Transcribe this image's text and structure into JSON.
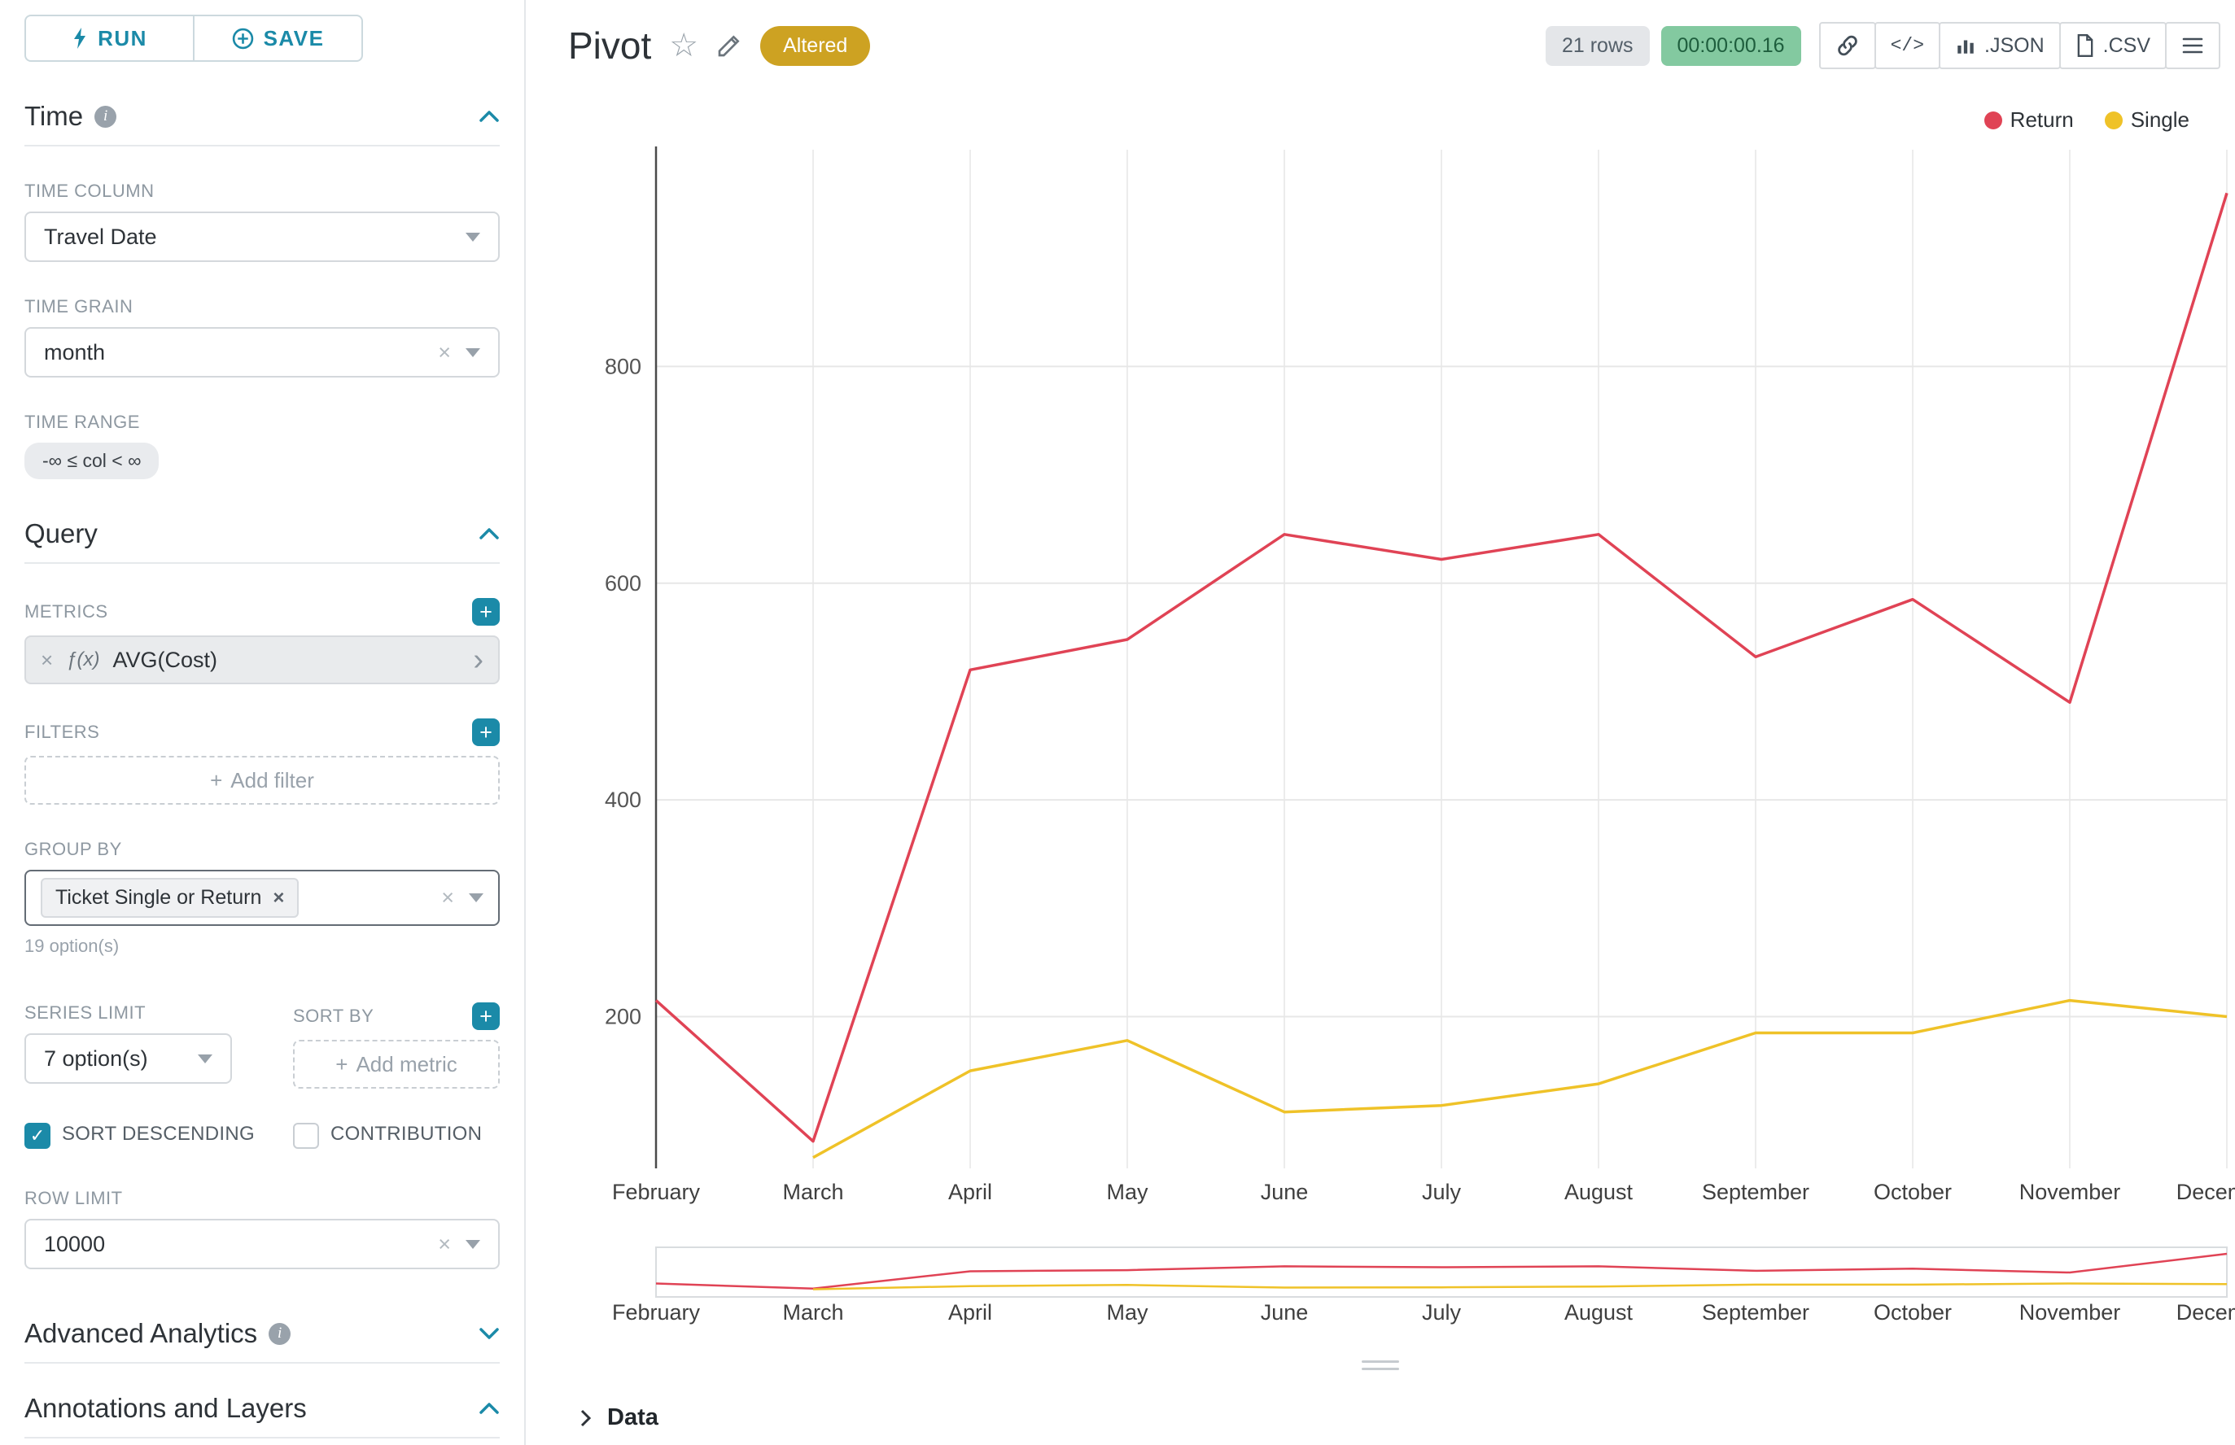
{
  "colors": {
    "accent": "#1b8aa8",
    "return_series": "#e04355",
    "single_series": "#efc228",
    "altered_badge_bg": "#cda222",
    "timer_badge_bg": "#83c9a0",
    "timer_badge_text": "#1e5e3d"
  },
  "icons": {
    "info": "i",
    "close": "×",
    "check": "✓",
    "plus": "+",
    "star": "☆",
    "code": "</>",
    "chevron_right": "›"
  },
  "sidebar": {
    "run_label": "RUN",
    "save_label": "SAVE",
    "sections": {
      "time": {
        "title": "Time",
        "time_column_label": "TIME COLUMN",
        "time_column_value": "Travel Date",
        "time_grain_label": "TIME GRAIN",
        "time_grain_value": "month",
        "time_range_label": "TIME RANGE",
        "time_range_value": "-∞ ≤ col < ∞"
      },
      "query": {
        "title": "Query",
        "metrics_label": "METRICS",
        "metric_fx": "ƒ(x)",
        "metric_value": "AVG(Cost)",
        "filters_label": "FILTERS",
        "add_filter_placeholder": "Add filter",
        "group_by_label": "GROUP BY",
        "group_by_value": "Ticket Single or Return",
        "group_by_options_hint": "19 option(s)",
        "series_limit_label": "SERIES LIMIT",
        "series_limit_value": "7 option(s)",
        "sort_by_label": "SORT BY",
        "add_metric_placeholder": "Add metric",
        "sort_descending_label": "SORT DESCENDING",
        "contribution_label": "CONTRIBUTION",
        "row_limit_label": "ROW LIMIT",
        "row_limit_value": "10000"
      },
      "advanced": {
        "title": "Advanced Analytics"
      },
      "annotations": {
        "title": "Annotations and Layers"
      }
    }
  },
  "header": {
    "title": "Pivot",
    "altered_badge": "Altered",
    "rows_badge": "21 rows",
    "timer_badge": "00:00:00.16",
    "json_label": ".JSON",
    "csv_label": ".CSV"
  },
  "footer": {
    "data_label": "Data"
  },
  "chart_data": {
    "type": "line",
    "title": "Pivot",
    "categories": [
      "February",
      "March",
      "April",
      "May",
      "June",
      "July",
      "August",
      "September",
      "October",
      "November",
      "December"
    ],
    "series": [
      {
        "name": "Return",
        "color": "#e04355",
        "values": [
          215,
          85,
          520,
          548,
          645,
          622,
          645,
          532,
          585,
          490,
          960
        ]
      },
      {
        "name": "Single",
        "color": "#efc228",
        "values": [
          null,
          70,
          150,
          178,
          112,
          118,
          138,
          185,
          185,
          215,
          200
        ]
      }
    ],
    "yticks": [
      200,
      400,
      600,
      800
    ],
    "ylim": [
      60,
      1000
    ],
    "xlabel": "",
    "ylabel": "",
    "grid": true,
    "legend_position": "top-right",
    "has_range_selector": true
  }
}
